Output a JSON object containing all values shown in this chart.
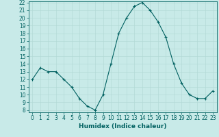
{
  "x": [
    0,
    1,
    2,
    3,
    4,
    5,
    6,
    7,
    8,
    9,
    10,
    11,
    12,
    13,
    14,
    15,
    16,
    17,
    18,
    19,
    20,
    21,
    22,
    23
  ],
  "y": [
    12,
    13.5,
    13,
    13,
    12,
    11,
    9.5,
    8.5,
    8,
    10,
    14,
    18,
    20,
    21.5,
    22,
    21,
    19.5,
    17.5,
    14,
    11.5,
    10,
    9.5,
    9.5,
    10.5
  ],
  "line_color": "#006060",
  "marker_color": "#006060",
  "background_color": "#c8eae8",
  "grid_color_major": "#b0d8d4",
  "grid_color_minor": "#c0e4e0",
  "xlabel": "Humidex (Indice chaleur)",
  "ylim": [
    8,
    22
  ],
  "xlim": [
    -0.5,
    23.5
  ],
  "yticks": [
    8,
    9,
    10,
    11,
    12,
    13,
    14,
    15,
    16,
    17,
    18,
    19,
    20,
    21,
    22
  ],
  "xticks": [
    0,
    1,
    2,
    3,
    4,
    5,
    6,
    7,
    8,
    9,
    10,
    11,
    12,
    13,
    14,
    15,
    16,
    17,
    18,
    19,
    20,
    21,
    22,
    23
  ],
  "tick_fontsize": 5.5,
  "label_fontsize": 6.5
}
